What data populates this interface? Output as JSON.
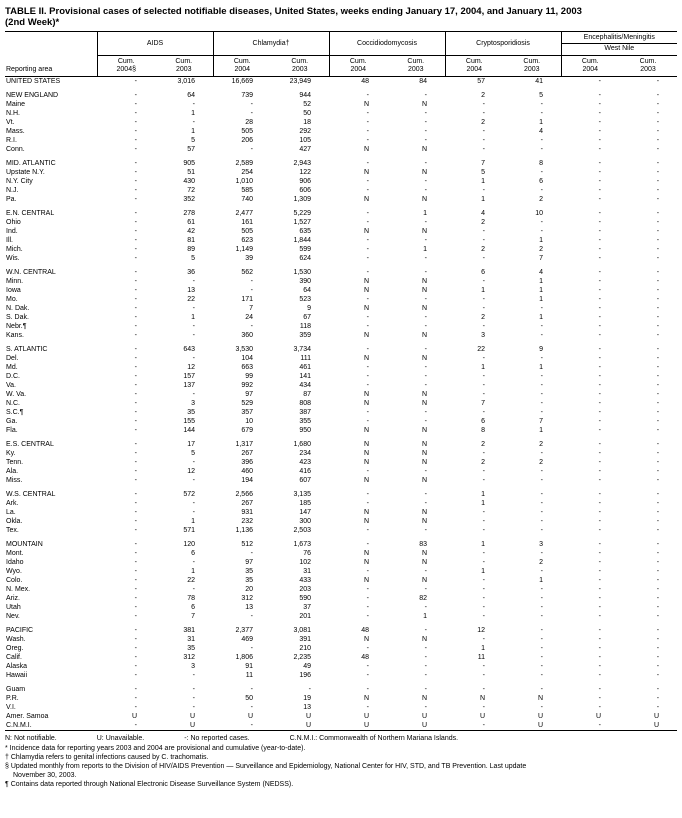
{
  "title": {
    "line1": "TABLE II. Provisional cases of selected notifiable diseases, United States, weeks ending January 17, 2004, and January 11, 2003",
    "line2": "(2nd Week)*"
  },
  "columns": {
    "reporting_area_label": "Reporting area",
    "groups": [
      {
        "label": "AIDS"
      },
      {
        "label": "Chlamydia†"
      },
      {
        "label": "Coccidiodomycosis"
      },
      {
        "label": "Cryptosporidiosis"
      },
      {
        "label": "Encephalitis/Meningitis",
        "label2": "West Nile"
      }
    ],
    "subheaders": [
      {
        "cum": "Cum.",
        "year": "2004§"
      },
      {
        "cum": "Cum.",
        "year": "2003"
      },
      {
        "cum": "Cum.",
        "year": "2004"
      },
      {
        "cum": "Cum.",
        "year": "2003"
      },
      {
        "cum": "Cum.",
        "year": "2004"
      },
      {
        "cum": "Cum.",
        "year": "2003"
      },
      {
        "cum": "Cum.",
        "year": "2004"
      },
      {
        "cum": "Cum.",
        "year": "2003"
      },
      {
        "cum": "Cum.",
        "year": "2004"
      },
      {
        "cum": "Cum.",
        "year": "2003"
      }
    ]
  },
  "sections": [
    {
      "rows": [
        {
          "area": "UNITED STATES",
          "values": [
            "-",
            "3,016",
            "16,669",
            "23,949",
            "48",
            "84",
            "57",
            "41",
            "-",
            "-"
          ]
        }
      ]
    },
    {
      "rows": [
        {
          "area": "NEW ENGLAND",
          "values": [
            "-",
            "64",
            "739",
            "944",
            "-",
            "-",
            "2",
            "5",
            "-",
            "-"
          ]
        },
        {
          "area": "Maine",
          "values": [
            "-",
            "-",
            "-",
            "52",
            "N",
            "N",
            "-",
            "-",
            "-",
            "-"
          ]
        },
        {
          "area": "N.H.",
          "values": [
            "-",
            "1",
            "-",
            "50",
            "-",
            "-",
            "-",
            "-",
            "-",
            "-"
          ]
        },
        {
          "area": "Vt.",
          "values": [
            "-",
            "-",
            "28",
            "18",
            "-",
            "-",
            "2",
            "1",
            "-",
            "-"
          ]
        },
        {
          "area": "Mass.",
          "values": [
            "-",
            "1",
            "505",
            "292",
            "-",
            "-",
            "-",
            "4",
            "-",
            "-"
          ]
        },
        {
          "area": "R.I.",
          "values": [
            "-",
            "5",
            "206",
            "105",
            "-",
            "-",
            "-",
            "-",
            "-",
            "-"
          ]
        },
        {
          "area": "Conn.",
          "values": [
            "-",
            "57",
            "-",
            "427",
            "N",
            "N",
            "-",
            "-",
            "-",
            "-"
          ]
        }
      ]
    },
    {
      "rows": [
        {
          "area": "MID. ATLANTIC",
          "values": [
            "-",
            "905",
            "2,589",
            "2,943",
            "-",
            "-",
            "7",
            "8",
            "-",
            "-"
          ]
        },
        {
          "area": "Upstate N.Y.",
          "values": [
            "-",
            "51",
            "254",
            "122",
            "N",
            "N",
            "5",
            "-",
            "-",
            "-"
          ]
        },
        {
          "area": "N.Y. City",
          "values": [
            "-",
            "430",
            "1,010",
            "906",
            "-",
            "-",
            "1",
            "6",
            "-",
            "-"
          ]
        },
        {
          "area": "N.J.",
          "values": [
            "-",
            "72",
            "585",
            "606",
            "-",
            "-",
            "-",
            "-",
            "-",
            "-"
          ]
        },
        {
          "area": "Pa.",
          "values": [
            "-",
            "352",
            "740",
            "1,309",
            "N",
            "N",
            "1",
            "2",
            "-",
            "-"
          ]
        }
      ]
    },
    {
      "rows": [
        {
          "area": "E.N. CENTRAL",
          "values": [
            "-",
            "278",
            "2,477",
            "5,229",
            "-",
            "1",
            "4",
            "10",
            "-",
            "-"
          ]
        },
        {
          "area": "Ohio",
          "values": [
            "-",
            "61",
            "161",
            "1,527",
            "-",
            "-",
            "2",
            "-",
            "-",
            "-"
          ]
        },
        {
          "area": "Ind.",
          "values": [
            "-",
            "42",
            "505",
            "635",
            "N",
            "N",
            "-",
            "-",
            "-",
            "-"
          ]
        },
        {
          "area": "Ill.",
          "values": [
            "-",
            "81",
            "623",
            "1,844",
            "-",
            "-",
            "-",
            "1",
            "-",
            "-"
          ]
        },
        {
          "area": "Mich.",
          "values": [
            "-",
            "89",
            "1,149",
            "599",
            "-",
            "1",
            "2",
            "2",
            "-",
            "-"
          ]
        },
        {
          "area": "Wis.",
          "values": [
            "-",
            "5",
            "39",
            "624",
            "-",
            "-",
            "-",
            "7",
            "-",
            "-"
          ]
        }
      ]
    },
    {
      "rows": [
        {
          "area": "W.N. CENTRAL",
          "values": [
            "-",
            "36",
            "562",
            "1,530",
            "-",
            "-",
            "6",
            "4",
            "-",
            "-"
          ]
        },
        {
          "area": "Minn.",
          "values": [
            "-",
            "-",
            "-",
            "390",
            "N",
            "N",
            "-",
            "1",
            "-",
            "-"
          ]
        },
        {
          "area": "Iowa",
          "values": [
            "-",
            "13",
            "-",
            "64",
            "N",
            "N",
            "1",
            "1",
            "-",
            "-"
          ]
        },
        {
          "area": "Mo.",
          "values": [
            "-",
            "22",
            "171",
            "523",
            "-",
            "-",
            "-",
            "1",
            "-",
            "-"
          ]
        },
        {
          "area": "N. Dak.",
          "values": [
            "-",
            "-",
            "7",
            "9",
            "N",
            "N",
            "-",
            "-",
            "-",
            "-"
          ]
        },
        {
          "area": "S. Dak.",
          "values": [
            "-",
            "1",
            "24",
            "67",
            "-",
            "-",
            "2",
            "1",
            "-",
            "-"
          ]
        },
        {
          "area": "Nebr.¶",
          "values": [
            "-",
            "-",
            "-",
            "118",
            "-",
            "-",
            "-",
            "-",
            "-",
            "-"
          ]
        },
        {
          "area": "Kans.",
          "values": [
            "-",
            "-",
            "360",
            "359",
            "N",
            "N",
            "3",
            "-",
            "-",
            "-"
          ]
        }
      ]
    },
    {
      "rows": [
        {
          "area": "S. ATLANTIC",
          "values": [
            "-",
            "643",
            "3,530",
            "3,734",
            "-",
            "-",
            "22",
            "9",
            "-",
            "-"
          ]
        },
        {
          "area": "Del.",
          "values": [
            "-",
            "-",
            "104",
            "111",
            "N",
            "N",
            "-",
            "-",
            "-",
            "-"
          ]
        },
        {
          "area": "Md.",
          "values": [
            "-",
            "12",
            "663",
            "461",
            "-",
            "-",
            "1",
            "1",
            "-",
            "-"
          ]
        },
        {
          "area": "D.C.",
          "values": [
            "-",
            "157",
            "99",
            "141",
            "-",
            "-",
            "-",
            "-",
            "-",
            "-"
          ]
        },
        {
          "area": "Va.",
          "values": [
            "-",
            "137",
            "992",
            "434",
            "-",
            "-",
            "-",
            "-",
            "-",
            "-"
          ]
        },
        {
          "area": "W. Va.",
          "values": [
            "-",
            "-",
            "97",
            "87",
            "N",
            "N",
            "-",
            "-",
            "-",
            "-"
          ]
        },
        {
          "area": "N.C.",
          "values": [
            "-",
            "3",
            "529",
            "808",
            "N",
            "N",
            "7",
            "-",
            "-",
            "-"
          ]
        },
        {
          "area": "S.C.¶",
          "values": [
            "-",
            "35",
            "357",
            "387",
            "-",
            "-",
            "-",
            "-",
            "-",
            "-"
          ]
        },
        {
          "area": "Ga.",
          "values": [
            "-",
            "155",
            "10",
            "355",
            "-",
            "-",
            "6",
            "7",
            "-",
            "-"
          ]
        },
        {
          "area": "Fla.",
          "values": [
            "-",
            "144",
            "679",
            "950",
            "N",
            "N",
            "8",
            "1",
            "-",
            "-"
          ]
        }
      ]
    },
    {
      "rows": [
        {
          "area": "E.S. CENTRAL",
          "values": [
            "-",
            "17",
            "1,317",
            "1,680",
            "N",
            "N",
            "2",
            "2",
            "-",
            "-"
          ]
        },
        {
          "area": "Ky.",
          "values": [
            "-",
            "5",
            "267",
            "234",
            "N",
            "N",
            "-",
            "-",
            "-",
            "-"
          ]
        },
        {
          "area": "Tenn.",
          "values": [
            "-",
            "-",
            "396",
            "423",
            "N",
            "N",
            "2",
            "2",
            "-",
            "-"
          ]
        },
        {
          "area": "Ala.",
          "values": [
            "-",
            "12",
            "460",
            "416",
            "-",
            "-",
            "-",
            "-",
            "-",
            "-"
          ]
        },
        {
          "area": "Miss.",
          "values": [
            "-",
            "-",
            "194",
            "607",
            "N",
            "N",
            "-",
            "-",
            "-",
            "-"
          ]
        }
      ]
    },
    {
      "rows": [
        {
          "area": "W.S. CENTRAL",
          "values": [
            "-",
            "572",
            "2,566",
            "3,135",
            "-",
            "-",
            "1",
            "-",
            "-",
            "-"
          ]
        },
        {
          "area": "Ark.",
          "values": [
            "-",
            "-",
            "267",
            "185",
            "-",
            "-",
            "1",
            "-",
            "-",
            "-"
          ]
        },
        {
          "area": "La.",
          "values": [
            "-",
            "-",
            "931",
            "147",
            "N",
            "N",
            "-",
            "-",
            "-",
            "-"
          ]
        },
        {
          "area": "Okla.",
          "values": [
            "-",
            "1",
            "232",
            "300",
            "N",
            "N",
            "-",
            "-",
            "-",
            "-"
          ]
        },
        {
          "area": "Tex.",
          "values": [
            "-",
            "571",
            "1,136",
            "2,503",
            "-",
            "-",
            "-",
            "-",
            "-",
            "-"
          ]
        }
      ]
    },
    {
      "rows": [
        {
          "area": "MOUNTAIN",
          "values": [
            "-",
            "120",
            "512",
            "1,673",
            "-",
            "83",
            "1",
            "3",
            "-",
            "-"
          ]
        },
        {
          "area": "Mont.",
          "values": [
            "-",
            "6",
            "-",
            "76",
            "N",
            "N",
            "-",
            "-",
            "-",
            "-"
          ]
        },
        {
          "area": "Idaho",
          "values": [
            "-",
            "-",
            "97",
            "102",
            "N",
            "N",
            "-",
            "2",
            "-",
            "-"
          ]
        },
        {
          "area": "Wyo.",
          "values": [
            "-",
            "1",
            "35",
            "31",
            "-",
            "-",
            "1",
            "-",
            "-",
            "-"
          ]
        },
        {
          "area": "Colo.",
          "values": [
            "-",
            "22",
            "35",
            "433",
            "N",
            "N",
            "-",
            "1",
            "-",
            "-"
          ]
        },
        {
          "area": "N. Mex.",
          "values": [
            "-",
            "-",
            "20",
            "203",
            "-",
            "-",
            "-",
            "-",
            "-",
            "-"
          ]
        },
        {
          "area": "Ariz.",
          "values": [
            "-",
            "78",
            "312",
            "590",
            "-",
            "82",
            "-",
            "-",
            "-",
            "-"
          ]
        },
        {
          "area": "Utah",
          "values": [
            "-",
            "6",
            "13",
            "37",
            "-",
            "-",
            "-",
            "-",
            "-",
            "-"
          ]
        },
        {
          "area": "Nev.",
          "values": [
            "-",
            "7",
            "-",
            "201",
            "-",
            "1",
            "-",
            "-",
            "-",
            "-"
          ]
        }
      ]
    },
    {
      "rows": [
        {
          "area": "PACIFIC",
          "values": [
            "-",
            "381",
            "2,377",
            "3,081",
            "48",
            "-",
            "12",
            "-",
            "-",
            "-"
          ]
        },
        {
          "area": "Wash.",
          "values": [
            "-",
            "31",
            "469",
            "391",
            "N",
            "N",
            "-",
            "-",
            "-",
            "-"
          ]
        },
        {
          "area": "Oreg.",
          "values": [
            "-",
            "35",
            "-",
            "210",
            "-",
            "-",
            "1",
            "-",
            "-",
            "-"
          ]
        },
        {
          "area": "Calif.",
          "values": [
            "-",
            "312",
            "1,806",
            "2,235",
            "48",
            "-",
            "11",
            "-",
            "-",
            "-"
          ]
        },
        {
          "area": "Alaska",
          "values": [
            "-",
            "3",
            "91",
            "49",
            "-",
            "-",
            "-",
            "-",
            "-",
            "-"
          ]
        },
        {
          "area": "Hawaii",
          "values": [
            "-",
            "-",
            "11",
            "196",
            "-",
            "-",
            "-",
            "-",
            "-",
            "-"
          ]
        }
      ]
    },
    {
      "rows": [
        {
          "area": "Guam",
          "values": [
            "-",
            "-",
            "-",
            "-",
            "-",
            "-",
            "-",
            "-",
            "-",
            "-"
          ]
        },
        {
          "area": "P.R.",
          "values": [
            "-",
            "-",
            "50",
            "19",
            "N",
            "N",
            "N",
            "N",
            "-",
            "-"
          ]
        },
        {
          "area": "V.I.",
          "values": [
            "-",
            "-",
            "-",
            "13",
            "-",
            "-",
            "-",
            "-",
            "-",
            "-"
          ]
        },
        {
          "area": "Amer. Samoa",
          "values": [
            "U",
            "U",
            "U",
            "U",
            "U",
            "U",
            "U",
            "U",
            "U",
            "U"
          ]
        },
        {
          "area": "C.N.M.I.",
          "values": [
            "-",
            "U",
            "-",
            "U",
            "U",
            "U",
            "-",
            "U",
            "-",
            "U"
          ]
        }
      ]
    }
  ],
  "legend": [
    "N: Not notifiable.",
    "U: Unavailable.",
    "-: No reported cases.",
    "C.N.M.I.: Commonwealth of Northern Mariana Islands."
  ],
  "footnotes": [
    "* Incidence data for reporting years 2003 and 2004 are provisional and cumulative (year-to-date).",
    "† Chlamydia refers to genital infections caused by C. trachomatis.",
    "§ Updated monthly from reports to the Division of HIV/AIDS Prevention — Surveillance and Epidemiology, National Center for HIV, STD, and TB Prevention. Last update\nNovember 30, 2003.",
    "¶ Contains data reported through National Electronic Disease Surveillance System (NEDSS)."
  ]
}
